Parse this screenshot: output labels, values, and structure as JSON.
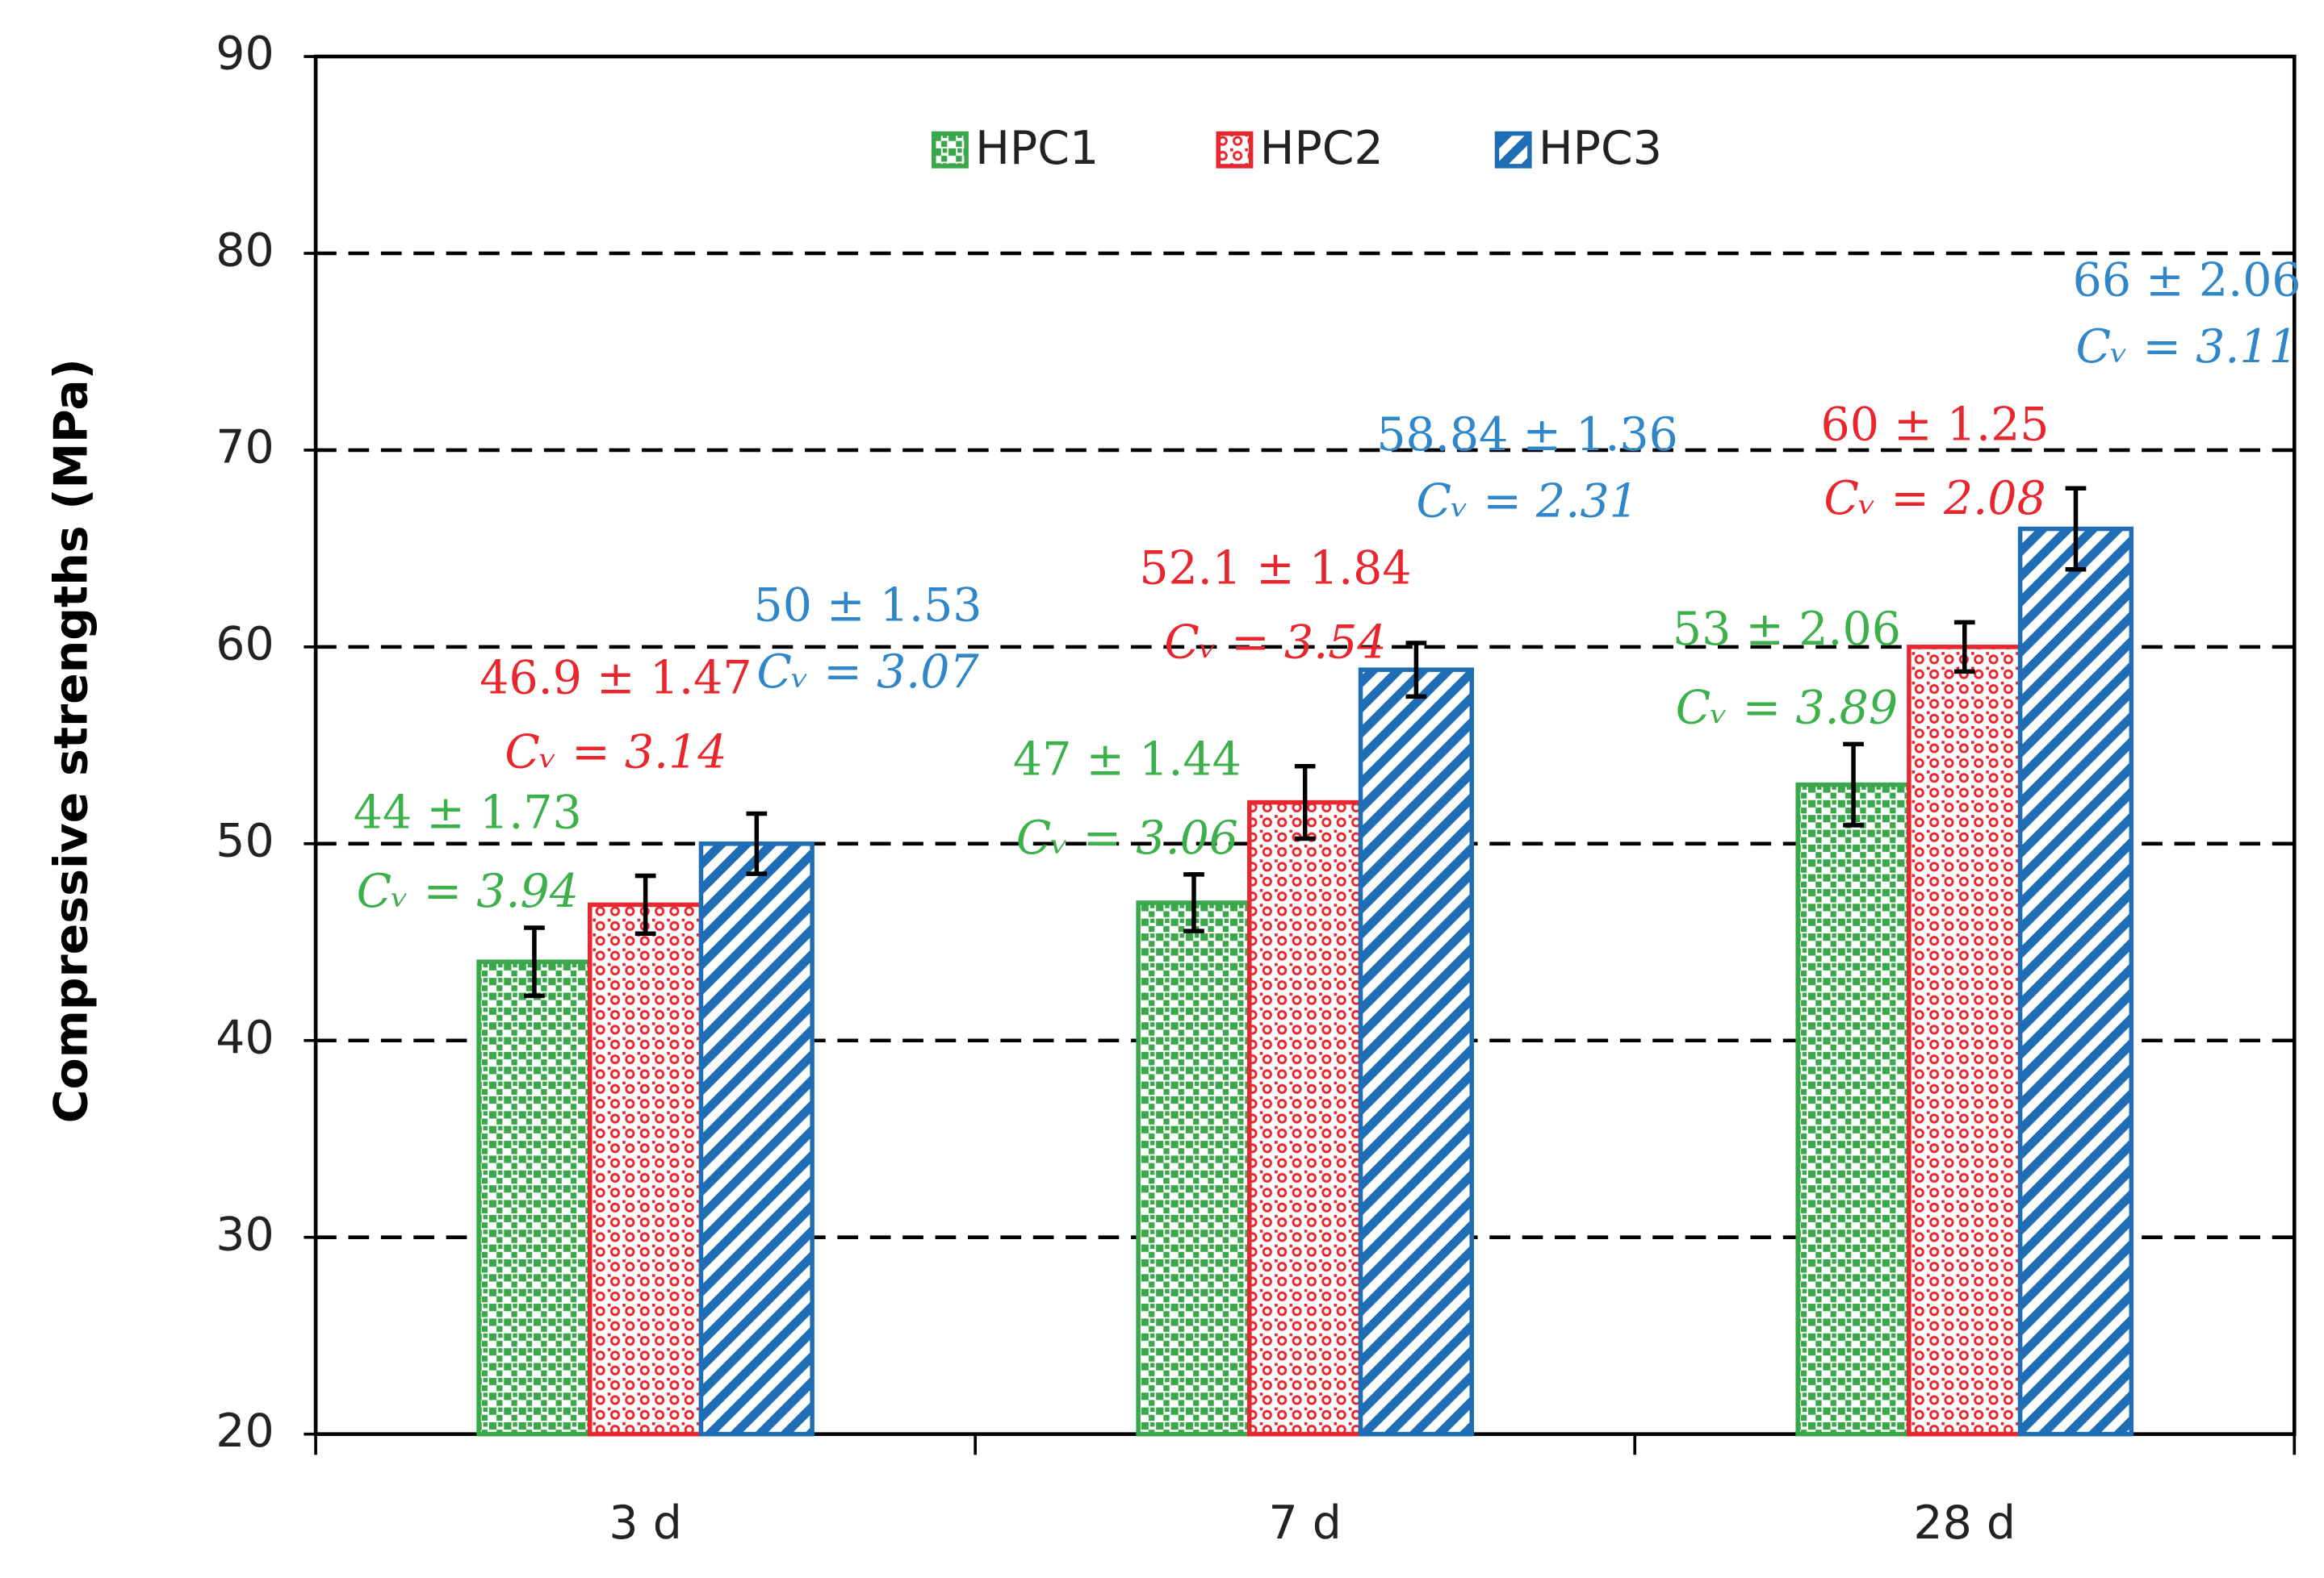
{
  "chart_data": {
    "type": "bar",
    "y_label": "Compressive strengths (MPa)",
    "categories": [
      "3 d",
      "7 d",
      "28 d"
    ],
    "series": [
      {
        "name": "HPC1",
        "color": "#3aa84a",
        "label_color": "#3cb04a",
        "pattern": "dots",
        "values": [
          44,
          47,
          53
        ],
        "errors": [
          1.73,
          1.44,
          2.06
        ],
        "value_labels": [
          "44 ± 1.73",
          "47 ± 1.44",
          "53 ± 2.06"
        ],
        "cv_labels": [
          "Cᵥ = 3.94",
          "Cᵥ = 3.06",
          "Cᵥ = 3.89"
        ]
      },
      {
        "name": "HPC2",
        "color": "#e8262e",
        "label_color": "#e8262e",
        "pattern": "checks",
        "values": [
          46.9,
          52.1,
          60
        ],
        "errors": [
          1.47,
          1.84,
          1.25
        ],
        "value_labels": [
          "46.9 ± 1.47",
          "52.1 ± 1.84",
          "60 ± 1.25"
        ],
        "cv_labels": [
          "Cᵥ = 3.14",
          "Cᵥ = 3.54",
          "Cᵥ = 2.08"
        ]
      },
      {
        "name": "HPC3",
        "color": "#1f6eb5",
        "label_color": "#2f86c8",
        "pattern": "stripes",
        "values": [
          50,
          58.84,
          66
        ],
        "errors": [
          1.53,
          1.36,
          2.06
        ],
        "value_labels": [
          "50 ± 1.53",
          "58.84 ± 1.36",
          "66 ± 2.06"
        ],
        "cv_labels": [
          "Cᵥ = 3.07",
          "Cᵥ = 2.31",
          "Cᵥ = 3.11"
        ]
      }
    ],
    "ylim": [
      20,
      90
    ],
    "yticks": [
      20,
      30,
      40,
      50,
      60,
      70,
      80,
      90
    ],
    "grid": true,
    "legend": "top"
  }
}
